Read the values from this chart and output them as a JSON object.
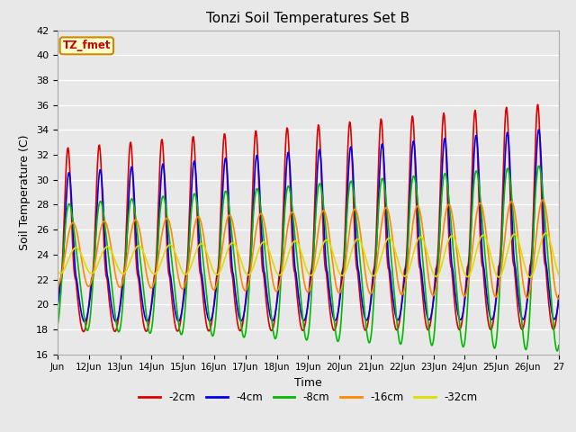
{
  "title": "Tonzi Soil Temperatures Set B",
  "xlabel": "Time",
  "ylabel": "Soil Temperature (C)",
  "ylim": [
    16,
    42
  ],
  "bg_color": "#e8e8e8",
  "plot_bg": "#e8e8e8",
  "grid_color": "white",
  "label_box": "TZ_fmet",
  "label_box_bg": "#ffffcc",
  "label_box_edge": "#cc0000",
  "series": [
    {
      "label": "-2cm",
      "color": "#dd0000",
      "lw": 1.2
    },
    {
      "label": "-4cm",
      "color": "#0000ee",
      "lw": 1.2
    },
    {
      "label": "-8cm",
      "color": "#00bb00",
      "lw": 1.2
    },
    {
      "label": "-16cm",
      "color": "#ff8800",
      "lw": 1.2
    },
    {
      "label": "-32cm",
      "color": "#dddd00",
      "lw": 1.2
    }
  ],
  "days": 16
}
